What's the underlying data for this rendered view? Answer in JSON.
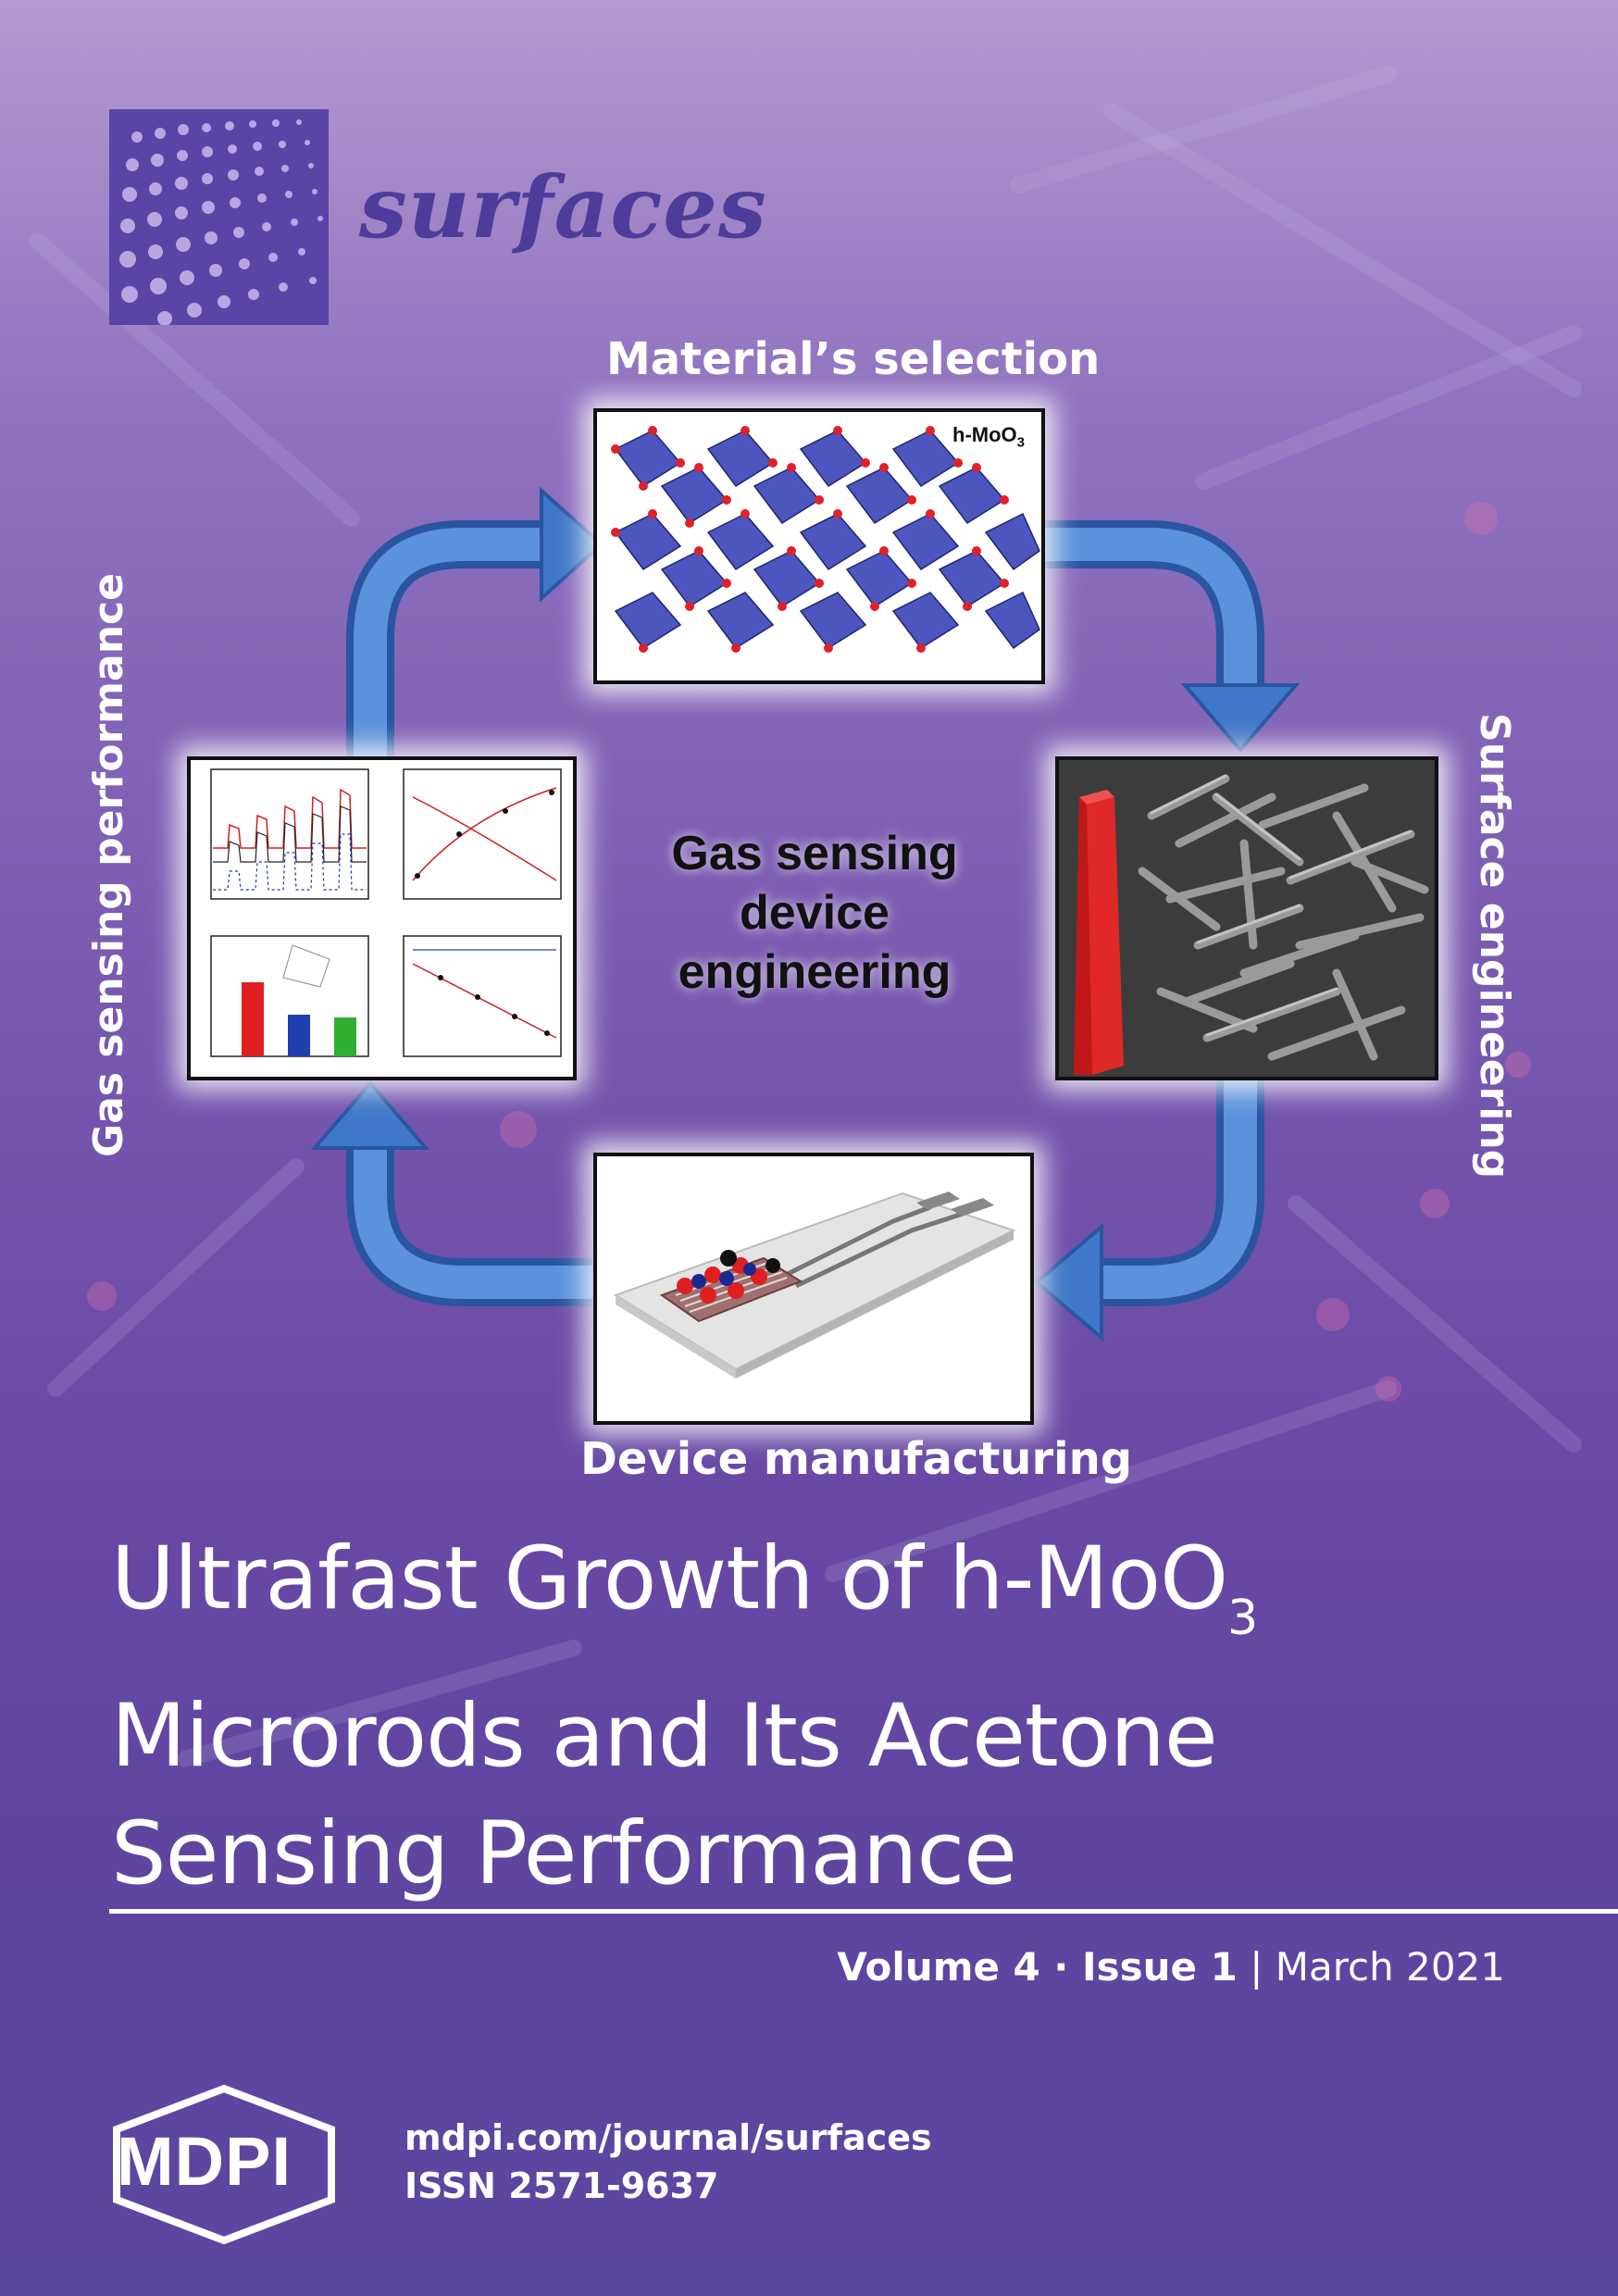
{
  "journal": {
    "name": "surfaces"
  },
  "diagram": {
    "top_label": "Material’s selection",
    "right_label": "Surface engineering",
    "bottom_label": "Device manufacturing",
    "left_label": "Gas sensing performance",
    "center_lines": [
      "Gas sensing",
      "device",
      "engineering"
    ],
    "top_panel_formula": "h-MoO",
    "top_panel_formula_sub": "3"
  },
  "article": {
    "title_line1": "Ultrafast Growth of h-MoO",
    "title_line1_sub": "3",
    "title_line2": "Microrods and Its Acetone",
    "title_line3": "Sensing Performance"
  },
  "issue": {
    "volume": "Volume 4",
    "separator": " · ",
    "issue": "Issue 1",
    "divider": " | ",
    "date": "March 2021"
  },
  "footer": {
    "publisher": "MDPI",
    "url": "mdpi.com/journal/surfaces",
    "issn": "ISSN 2571-9637"
  },
  "colors": {
    "accent_purple": "#4e3c9a",
    "arrow_blue": "#3f78c8",
    "background": "#6a4aa6"
  }
}
